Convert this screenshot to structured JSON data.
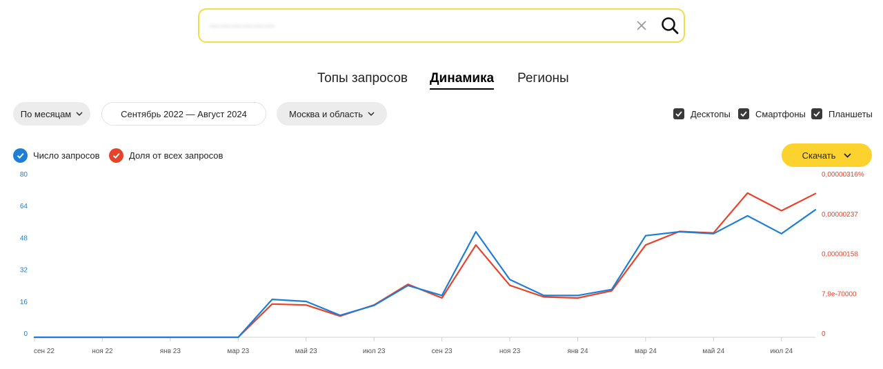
{
  "search": {
    "value": "——————"
  },
  "tabs": [
    {
      "label": "Топы запросов",
      "active": false
    },
    {
      "label": "Динамика",
      "active": true
    },
    {
      "label": "Регионы",
      "active": false
    }
  ],
  "filters": {
    "period_type": "По месяцам",
    "date_range": "Сентябрь 2022 — Август 2024",
    "region": "Москва и область"
  },
  "devices": [
    {
      "label": "Десктопы",
      "checked": true
    },
    {
      "label": "Смартфоны",
      "checked": true
    },
    {
      "label": "Планшеты",
      "checked": true
    }
  ],
  "legend": [
    {
      "label": "Число запросов",
      "color": "#1e7ed6",
      "checked": true
    },
    {
      "label": "Доля от всех запросов",
      "color": "#e8432a",
      "checked": true
    }
  ],
  "download_label": "Скачать",
  "chart_data": {
    "type": "line",
    "x": [
      "сен 22",
      "окт 22",
      "ноя 22",
      "дек 22",
      "янв 23",
      "фев 23",
      "мар 23",
      "апр 23",
      "май 23",
      "июн 23",
      "июл 23",
      "авг 23",
      "сен 23",
      "окт 23",
      "ноя 23",
      "дек 23",
      "янв 24",
      "фев 24",
      "мар 24",
      "апр 24",
      "май 24",
      "июн 24",
      "июл 24",
      "авг 24"
    ],
    "x_tick_labels": [
      "сен 22",
      "ноя 22",
      "янв 23",
      "мар 23",
      "май 23",
      "июл 23",
      "сен 23",
      "ноя 23",
      "янв 24",
      "мар 24",
      "май 24",
      "июл 24"
    ],
    "series": [
      {
        "name": "Число запросов",
        "axis": "left",
        "color": "#1e7ed6",
        "values": [
          0,
          0,
          0,
          0,
          0,
          0,
          0,
          19,
          18,
          11,
          16,
          26,
          21,
          53,
          29,
          21,
          21,
          24,
          51,
          53,
          52,
          61,
          52,
          64
        ]
      },
      {
        "name": "Доля от всех запросов",
        "axis": "right",
        "color": "#e8432a",
        "values": [
          0,
          0,
          0,
          0,
          0,
          0,
          0,
          6.6e-07,
          6.4e-07,
          4.2e-07,
          6.4e-07,
          1.05e-06,
          7.8e-07,
          1.83e-06,
          1.03e-06,
          8e-07,
          7.8e-07,
          9.2e-07,
          1.83e-06,
          2.1e-06,
          2.07e-06,
          2.86e-06,
          2.51e-06,
          2.85e-06
        ]
      }
    ],
    "y_left": {
      "ticks": [
        "0",
        "16",
        "32",
        "48",
        "64",
        "80"
      ],
      "ylim": [
        0,
        80
      ],
      "color": "#1e7ed6"
    },
    "y_right": {
      "ticks": [
        "0",
        "7,9e-70000",
        "0,00000158",
        "0,00000237",
        "0,00000316%"
      ],
      "ylim": [
        0,
        3.16e-06
      ],
      "color": "#e8432a"
    },
    "grid": false
  }
}
